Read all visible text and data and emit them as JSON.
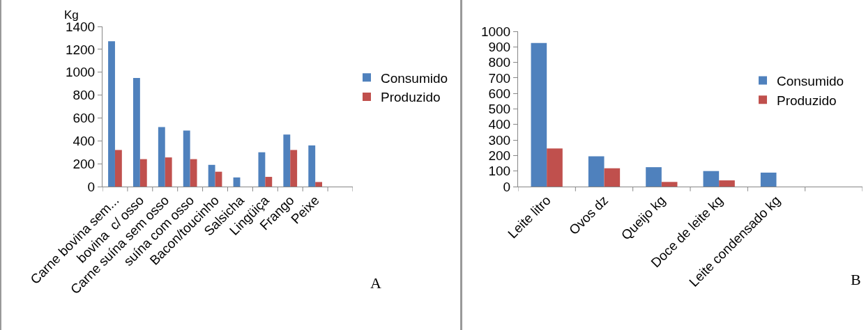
{
  "chart_data": [
    {
      "type": "bar",
      "ylabel": "Kg",
      "categories": [
        "Carne bovina sem...",
        "bovina  c/ osso",
        "Carne suína sem osso",
        "suína com osso",
        "Bacon/toucinho",
        "Salsicha",
        "Lingüiça",
        "Frango",
        "Peixe",
        null
      ],
      "series": [
        {
          "name": "Consumido",
          "color": "#4f81bd",
          "values": [
            1270,
            950,
            520,
            490,
            190,
            80,
            300,
            455,
            360,
            null
          ]
        },
        {
          "name": "Produzido",
          "color": "#c0504d",
          "values": [
            320,
            240,
            255,
            240,
            130,
            null,
            85,
            320,
            40,
            null
          ]
        }
      ],
      "ylim": [
        0,
        1400
      ],
      "yticks": [
        0,
        200,
        400,
        600,
        800,
        1000,
        1200,
        1400
      ],
      "grid": false,
      "legend": "right",
      "annotations": [
        "A"
      ]
    },
    {
      "type": "bar",
      "categories": [
        "Leite litro",
        "Ovos dz",
        "Queijo kg",
        "Doce de leite kg",
        "Leite condensado kg",
        null
      ],
      "series": [
        {
          "name": "Consumido",
          "color": "#4f81bd",
          "values": [
            925,
            195,
            125,
            100,
            90,
            null
          ]
        },
        {
          "name": "Produzido",
          "color": "#c0504d",
          "values": [
            245,
            118,
            30,
            40,
            null,
            null
          ]
        }
      ],
      "ylim": [
        0,
        1000
      ],
      "yticks": [
        0,
        100,
        200,
        300,
        400,
        500,
        600,
        700,
        800,
        900,
        1000
      ],
      "grid": false,
      "legend": "right",
      "annotations": [
        "B"
      ]
    }
  ]
}
